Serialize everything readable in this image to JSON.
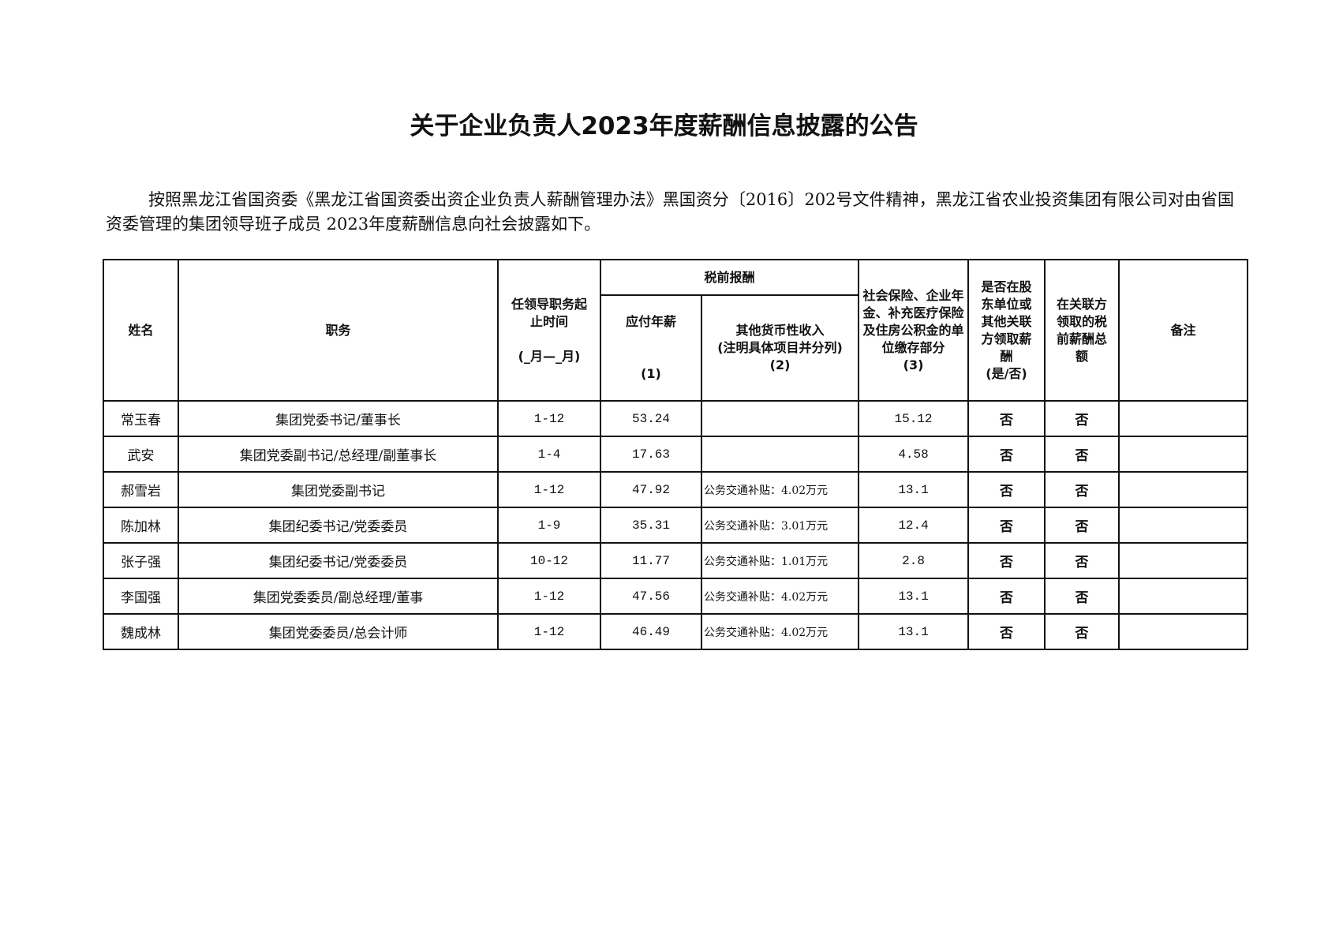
{
  "title": "关于企业负责人2023年度薪酬信息披露的公告",
  "paragraph": "按照黑龙江省国资委《黑龙江省国资委出资企业负责人薪酬管理办法》黑国资分〔2016〕202号文件精神，黑龙江省农业投资集团有限公司对由省国资委管理的集团领导班子成员 2023年度薪酬信息向社会披露如下。",
  "table": {
    "headers": {
      "name": "姓名",
      "position": "职务",
      "term": "任领导职务起止时间",
      "term_unit": "(_月—_月)",
      "pretax": "税前报酬",
      "salary": "应付年薪",
      "salary_no": "(1)",
      "other": "其他货币性收入",
      "other_note": "(注明具体项目并分列)",
      "other_no": "(2)",
      "social": "社会保险、企业年金、补充医疗保险及住房公积金的单位缴存部分",
      "social_no": "(3)",
      "shareholder": "是否在股东单位或其他关联方领取薪酬",
      "shareholder_yn": "(是/否)",
      "related": "在关联方领取的税前薪酬总额",
      "remark": "备注"
    },
    "rows": [
      {
        "name": "常玉春",
        "position": "集团党委书记/董事长",
        "term": "1-12",
        "salary": "53.24",
        "other": "",
        "social": "15.12",
        "shareholder": "否",
        "related": "否",
        "remark": ""
      },
      {
        "name": "武安",
        "position": "集团党委副书记/总经理/副董事长",
        "term": "1-4",
        "salary": "17.63",
        "other": "",
        "social": "4.58",
        "shareholder": "否",
        "related": "否",
        "remark": ""
      },
      {
        "name": "郝雪岩",
        "position": "集团党委副书记",
        "term": "1-12",
        "salary": "47.92",
        "other": "公务交通补贴：4.02万元",
        "social": "13.1",
        "shareholder": "否",
        "related": "否",
        "remark": ""
      },
      {
        "name": "陈加林",
        "position": "集团纪委书记/党委委员",
        "term": "1-9",
        "salary": "35.31",
        "other": "公务交通补贴：3.01万元",
        "social": "12.4",
        "shareholder": "否",
        "related": "否",
        "remark": ""
      },
      {
        "name": "张子强",
        "position": "集团纪委书记/党委委员",
        "term": "10-12",
        "salary": "11.77",
        "other": "公务交通补贴：1.01万元",
        "social": "2.8",
        "shareholder": "否",
        "related": "否",
        "remark": ""
      },
      {
        "name": "李国强",
        "position": "集团党委委员/副总经理/董事",
        "term": "1-12",
        "salary": "47.56",
        "other": "公务交通补贴：4.02万元",
        "social": "13.1",
        "shareholder": "否",
        "related": "否",
        "remark": ""
      },
      {
        "name": "魏成林",
        "position": "集团党委委员/总会计师",
        "term": "1-12",
        "salary": "46.49",
        "other": "公务交通补贴：4.02万元",
        "social": "13.1",
        "shareholder": "否",
        "related": "否",
        "remark": ""
      }
    ]
  }
}
